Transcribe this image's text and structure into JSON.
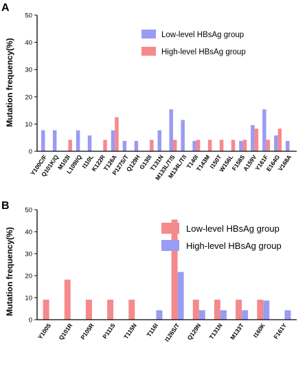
{
  "colors": {
    "blue": "#9a9bf3",
    "red": "#f58a8c"
  },
  "chart_data": [
    {
      "panel": "A",
      "type": "bar",
      "ylabel": "Mutation frequency(%)",
      "ylim": [
        0,
        50
      ],
      "yticks": [
        0,
        10,
        20,
        30,
        40,
        50
      ],
      "legend": "top-right",
      "categories": [
        "Y100C/F",
        "Q101K/Q",
        "M103I",
        "L109I/Q",
        "I110L",
        "K122R",
        "T126A",
        "P127S/T",
        "Q129H",
        "G130I",
        "T131N",
        "M133L/T/S",
        "M134L/T/I",
        "T140I",
        "T143M",
        "I150T",
        "W156L",
        "F158S",
        "A159V",
        "Y161F",
        "E164G",
        "V168A"
      ],
      "series": [
        {
          "name": "Low-level HBsAg group",
          "color": "#9a9bf3",
          "values": [
            7.7,
            7.7,
            0,
            7.7,
            5.8,
            0,
            7.7,
            3.8,
            3.8,
            0,
            7.7,
            15.4,
            11.5,
            3.8,
            0,
            0,
            0,
            3.8,
            9.6,
            15.4,
            5.8,
            3.8
          ]
        },
        {
          "name": "High-level HBsAg group",
          "color": "#f58a8c",
          "values": [
            0,
            0,
            4.2,
            0,
            0,
            4.2,
            12.5,
            0,
            0,
            4.2,
            0,
            4.2,
            0,
            4.2,
            4.2,
            4.2,
            4.2,
            4.2,
            8.3,
            4.2,
            8.3,
            0
          ]
        }
      ]
    },
    {
      "panel": "B",
      "type": "bar",
      "ylabel": "Mutation frequency(%)",
      "ylim": [
        0,
        50
      ],
      "yticks": [
        0,
        10,
        20,
        30,
        40,
        50
      ],
      "legend": "top-right",
      "categories": [
        "Y100S",
        "Q101R",
        "P105R",
        "P111S",
        "T115N",
        "T116I",
        "I126S/T",
        "Q129N",
        "T131N",
        "M133T",
        "I160K",
        "F161Y"
      ],
      "series": [
        {
          "name": "Low-level HBsAg group",
          "color": "#f58a8c",
          "values": [
            9.1,
            18.2,
            9.1,
            9.1,
            9.1,
            0,
            45.5,
            9.1,
            9.1,
            9.1,
            9.1,
            0
          ]
        },
        {
          "name": "High-level HBsAg group",
          "color": "#9a9bf3",
          "values": [
            0,
            0,
            0,
            0,
            0,
            4.3,
            21.7,
            4.3,
            4.3,
            4.3,
            8.7,
            4.3
          ]
        }
      ]
    }
  ]
}
